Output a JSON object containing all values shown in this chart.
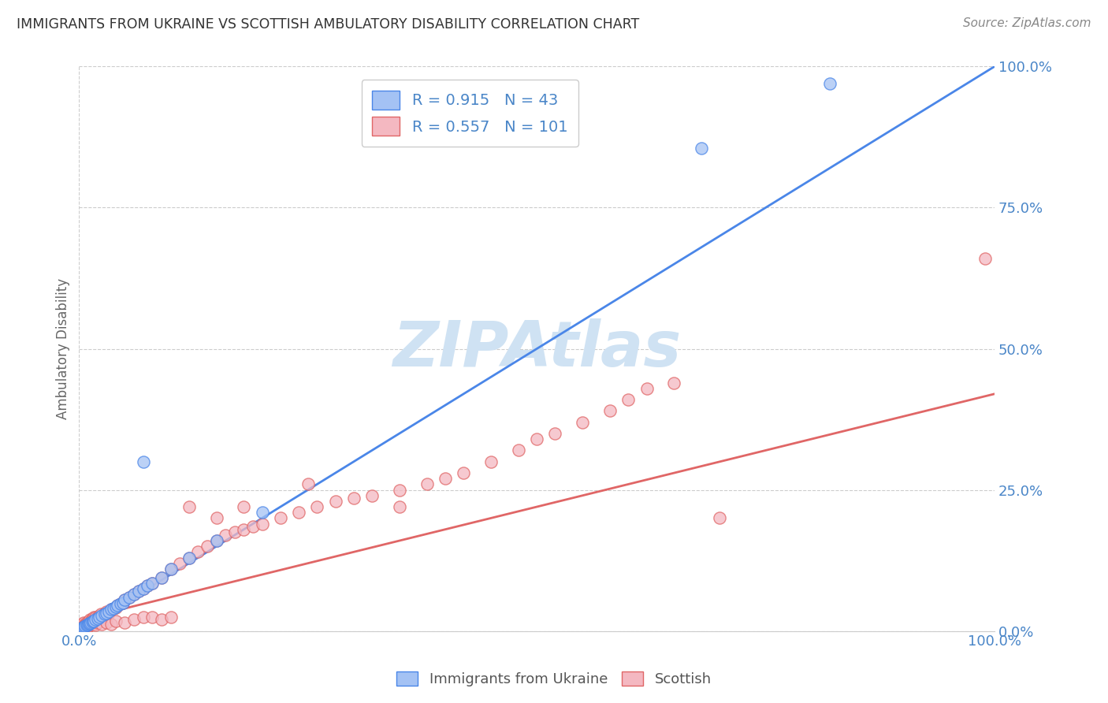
{
  "title": "IMMIGRANTS FROM UKRAINE VS SCOTTISH AMBULATORY DISABILITY CORRELATION CHART",
  "source": "Source: ZipAtlas.com",
  "ylabel": "Ambulatory Disability",
  "xlim": [
    0,
    1
  ],
  "ylim": [
    0,
    1
  ],
  "x_tick_labels": [
    "0.0%",
    "100.0%"
  ],
  "y_tick_labels": [
    "0.0%",
    "25.0%",
    "50.0%",
    "75.0%",
    "100.0%"
  ],
  "y_tick_positions": [
    0,
    0.25,
    0.5,
    0.75,
    1.0
  ],
  "blue_R": 0.915,
  "blue_N": 43,
  "pink_R": 0.557,
  "pink_N": 101,
  "blue_color": "#a4c2f4",
  "pink_color": "#f4b8c1",
  "blue_line_color": "#4a86e8",
  "pink_line_color": "#e06666",
  "legend_text_color": "#4a86c8",
  "title_color": "#333333",
  "source_color": "#888888",
  "watermark_color": "#cfe2f3",
  "background_color": "#ffffff",
  "grid_color": "#cccccc",
  "blue_line": [
    0.0,
    0.0,
    1.0,
    1.0
  ],
  "pink_line": [
    0.0,
    0.02,
    1.0,
    0.42
  ],
  "blue_scatter_x": [
    0.002,
    0.003,
    0.004,
    0.005,
    0.006,
    0.007,
    0.008,
    0.009,
    0.01,
    0.011,
    0.012,
    0.013,
    0.014,
    0.015,
    0.016,
    0.018,
    0.02,
    0.022,
    0.025,
    0.028,
    0.03,
    0.032,
    0.035,
    0.038,
    0.04,
    0.042,
    0.045,
    0.048,
    0.05,
    0.055,
    0.06,
    0.065,
    0.07,
    0.075,
    0.08,
    0.09,
    0.1,
    0.12,
    0.15,
    0.2,
    0.07,
    0.68,
    0.82
  ],
  "blue_scatter_y": [
    0.003,
    0.005,
    0.006,
    0.007,
    0.008,
    0.009,
    0.01,
    0.011,
    0.012,
    0.013,
    0.014,
    0.015,
    0.016,
    0.017,
    0.018,
    0.02,
    0.022,
    0.025,
    0.028,
    0.03,
    0.032,
    0.035,
    0.038,
    0.04,
    0.043,
    0.045,
    0.048,
    0.05,
    0.055,
    0.06,
    0.065,
    0.07,
    0.075,
    0.08,
    0.085,
    0.095,
    0.11,
    0.13,
    0.16,
    0.21,
    0.3,
    0.855,
    0.97
  ],
  "pink_scatter_x": [
    0.001,
    0.002,
    0.003,
    0.004,
    0.005,
    0.006,
    0.007,
    0.008,
    0.009,
    0.01,
    0.011,
    0.012,
    0.013,
    0.014,
    0.015,
    0.016,
    0.017,
    0.018,
    0.019,
    0.02,
    0.022,
    0.024,
    0.026,
    0.028,
    0.03,
    0.032,
    0.035,
    0.038,
    0.04,
    0.042,
    0.045,
    0.048,
    0.05,
    0.055,
    0.06,
    0.065,
    0.07,
    0.075,
    0.08,
    0.09,
    0.1,
    0.11,
    0.12,
    0.13,
    0.14,
    0.15,
    0.16,
    0.17,
    0.18,
    0.19,
    0.2,
    0.22,
    0.24,
    0.26,
    0.28,
    0.3,
    0.32,
    0.35,
    0.38,
    0.4,
    0.42,
    0.45,
    0.48,
    0.5,
    0.52,
    0.55,
    0.58,
    0.6,
    0.62,
    0.65,
    0.001,
    0.002,
    0.003,
    0.004,
    0.005,
    0.006,
    0.007,
    0.008,
    0.009,
    0.01,
    0.012,
    0.015,
    0.018,
    0.02,
    0.025,
    0.03,
    0.035,
    0.04,
    0.05,
    0.06,
    0.07,
    0.08,
    0.09,
    0.1,
    0.12,
    0.15,
    0.18,
    0.25,
    0.35,
    0.7,
    0.99
  ],
  "pink_scatter_y": [
    0.005,
    0.008,
    0.01,
    0.012,
    0.015,
    0.01,
    0.012,
    0.014,
    0.016,
    0.015,
    0.018,
    0.02,
    0.018,
    0.022,
    0.02,
    0.025,
    0.022,
    0.025,
    0.02,
    0.025,
    0.028,
    0.03,
    0.028,
    0.032,
    0.035,
    0.032,
    0.038,
    0.04,
    0.042,
    0.045,
    0.048,
    0.05,
    0.055,
    0.06,
    0.065,
    0.07,
    0.075,
    0.08,
    0.085,
    0.095,
    0.11,
    0.12,
    0.13,
    0.14,
    0.15,
    0.16,
    0.17,
    0.175,
    0.18,
    0.185,
    0.19,
    0.2,
    0.21,
    0.22,
    0.23,
    0.235,
    0.24,
    0.25,
    0.26,
    0.27,
    0.28,
    0.3,
    0.32,
    0.34,
    0.35,
    0.37,
    0.39,
    0.41,
    0.43,
    0.44,
    0.003,
    0.005,
    0.007,
    0.005,
    0.006,
    0.008,
    0.006,
    0.007,
    0.009,
    0.008,
    0.01,
    0.012,
    0.01,
    0.015,
    0.012,
    0.015,
    0.012,
    0.018,
    0.015,
    0.02,
    0.025,
    0.025,
    0.02,
    0.025,
    0.22,
    0.2,
    0.22,
    0.26,
    0.22,
    0.2,
    0.66
  ]
}
